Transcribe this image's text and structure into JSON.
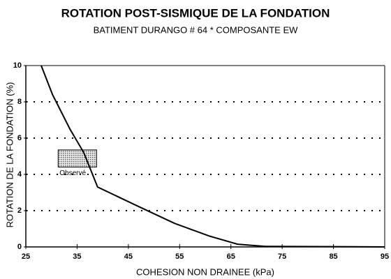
{
  "chart_data": {
    "type": "line",
    "title": "ROTATION POST-SISMIQUE DE LA FONDATION",
    "subtitle": "BATIMENT DURANGO # 64 * COMPOSANTE EW",
    "x_label": "COHESION NON DRAINEE (kPa)",
    "y_label": "ROTATION DE LA FONDATION (%)",
    "xlim": [
      25,
      95
    ],
    "ylim": [
      0,
      10
    ],
    "xticks": [
      25,
      35,
      45,
      55,
      65,
      75,
      85,
      95
    ],
    "yticks": [
      0,
      2,
      4,
      6,
      8,
      10
    ],
    "grid": true,
    "series": [
      {
        "color": "#000000",
        "x": [
          28,
          30.2,
          33.6,
          36.3,
          39,
          47.2,
          54,
          60.8,
          66.3,
          71.7,
          95
        ],
        "values": [
          10,
          8.4,
          6.5,
          5.2,
          3.3,
          2.2,
          1.3,
          0.6,
          0.15,
          0.03,
          0
        ]
      }
    ],
    "observed": {
      "label": "Observé",
      "x": [
        31.3,
        38.8
      ],
      "y": [
        4.4,
        5.35
      ]
    }
  }
}
